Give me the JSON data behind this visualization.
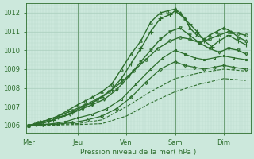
{
  "bg_color": "#cce8dc",
  "plot_bg_color": "#cce8dc",
  "grid_color_major": "#aacfbe",
  "grid_color_minor": "#b8d9ca",
  "line_color": "#2d6e2d",
  "ylabel": "Pression niveau de la mer( hPa )",
  "xtick_labels": [
    "Mer",
    "Jeu",
    "Ven",
    "Sam",
    "Dim"
  ],
  "ylim": [
    1005.6,
    1012.5
  ],
  "yticks": [
    1006,
    1007,
    1008,
    1009,
    1010,
    1011,
    1012
  ],
  "xlim": [
    -0.05,
    4.55
  ],
  "x_day_positions": [
    0,
    1,
    2,
    3,
    4
  ],
  "vlines_x": [
    1.0,
    2.0,
    3.0,
    4.0
  ],
  "figsize": [
    3.2,
    2.0
  ],
  "dpi": 100,
  "lines": [
    {
      "x": [
        0.0,
        0.12,
        0.25,
        0.4,
        0.6,
        0.8,
        1.0,
        1.15,
        1.3,
        1.5,
        1.7,
        1.9,
        2.1,
        2.3,
        2.5,
        2.7,
        2.85,
        3.0,
        3.1,
        3.2,
        3.3,
        3.45,
        3.6,
        3.7,
        3.85,
        4.0,
        4.15,
        4.3,
        4.45
      ],
      "y": [
        1006.0,
        1006.1,
        1006.2,
        1006.3,
        1006.5,
        1006.8,
        1007.1,
        1007.3,
        1007.5,
        1007.8,
        1008.2,
        1009.0,
        1009.8,
        1010.5,
        1011.5,
        1012.0,
        1012.1,
        1012.2,
        1012.0,
        1011.7,
        1011.2,
        1010.8,
        1010.6,
        1010.8,
        1011.0,
        1011.2,
        1011.0,
        1010.7,
        1010.5
      ],
      "style": "-",
      "marker": "^",
      "ms": 2.5,
      "lw": 1.0,
      "alpha": 1.0
    },
    {
      "x": [
        0.0,
        0.15,
        0.3,
        0.5,
        0.7,
        0.9,
        1.1,
        1.3,
        1.5,
        1.7,
        1.9,
        2.1,
        2.3,
        2.5,
        2.7,
        2.9,
        3.0,
        3.15,
        3.3,
        3.45,
        3.6,
        3.75,
        3.9,
        4.1,
        4.3,
        4.45
      ],
      "y": [
        1006.0,
        1006.1,
        1006.15,
        1006.3,
        1006.5,
        1006.7,
        1007.0,
        1007.2,
        1007.5,
        1007.9,
        1008.5,
        1009.3,
        1010.1,
        1011.0,
        1011.7,
        1011.9,
        1012.1,
        1011.8,
        1011.4,
        1011.0,
        1010.5,
        1010.2,
        1010.5,
        1010.8,
        1010.5,
        1010.3
      ],
      "style": "-",
      "marker": "+",
      "ms": 4,
      "lw": 1.0,
      "alpha": 1.0
    },
    {
      "x": [
        0.0,
        0.2,
        0.4,
        0.6,
        0.85,
        1.1,
        1.3,
        1.55,
        1.8,
        2.05,
        2.3,
        2.5,
        2.7,
        2.9,
        3.1,
        3.3,
        3.5,
        3.7,
        3.9,
        4.1,
        4.3,
        4.45
      ],
      "y": [
        1006.0,
        1006.1,
        1006.2,
        1006.4,
        1006.6,
        1006.9,
        1007.1,
        1007.4,
        1007.9,
        1008.6,
        1009.4,
        1010.0,
        1010.6,
        1011.0,
        1011.2,
        1010.8,
        1010.4,
        1010.1,
        1009.9,
        1010.1,
        1010.0,
        1009.8
      ],
      "style": "-",
      "marker": "v",
      "ms": 2.5,
      "lw": 1.0,
      "alpha": 1.0
    },
    {
      "x": [
        0.0,
        0.25,
        0.5,
        0.75,
        1.0,
        1.3,
        1.6,
        1.9,
        2.2,
        2.5,
        2.75,
        3.0,
        3.2,
        3.4,
        3.6,
        3.8,
        4.0,
        4.2,
        4.45
      ],
      "y": [
        1006.0,
        1006.05,
        1006.1,
        1006.2,
        1006.4,
        1006.6,
        1006.9,
        1007.4,
        1008.2,
        1009.0,
        1009.6,
        1010.0,
        1009.8,
        1009.6,
        1009.5,
        1009.6,
        1009.7,
        1009.6,
        1009.5
      ],
      "style": "-",
      "marker": "s",
      "ms": 2,
      "lw": 0.9,
      "alpha": 1.0
    },
    {
      "x": [
        0.0,
        0.3,
        0.6,
        0.9,
        1.2,
        1.5,
        1.8,
        2.1,
        2.4,
        2.7,
        3.0,
        3.2,
        3.4,
        3.6,
        3.8,
        4.0,
        4.2,
        4.45
      ],
      "y": [
        1006.0,
        1006.05,
        1006.08,
        1006.15,
        1006.3,
        1006.5,
        1006.9,
        1007.5,
        1008.3,
        1009.0,
        1009.4,
        1009.2,
        1009.1,
        1009.0,
        1009.1,
        1009.2,
        1009.1,
        1009.0
      ],
      "style": "-",
      "marker": "D",
      "ms": 2,
      "lw": 0.9,
      "alpha": 1.0
    },
    {
      "x": [
        0.0,
        0.5,
        1.0,
        1.5,
        2.0,
        2.5,
        3.0,
        3.5,
        4.0,
        4.45
      ],
      "y": [
        1006.0,
        1006.05,
        1006.1,
        1006.3,
        1007.0,
        1007.8,
        1008.5,
        1008.8,
        1009.0,
        1008.9
      ],
      "style": "--",
      "marker": null,
      "ms": 0,
      "lw": 0.8,
      "alpha": 1.0
    },
    {
      "x": [
        0.0,
        0.5,
        1.0,
        1.5,
        2.0,
        2.5,
        3.0,
        3.5,
        4.0,
        4.45
      ],
      "y": [
        1006.0,
        1006.03,
        1006.05,
        1006.1,
        1006.5,
        1007.2,
        1007.8,
        1008.2,
        1008.5,
        1008.4
      ],
      "style": "--",
      "marker": null,
      "ms": 0,
      "lw": 0.8,
      "alpha": 1.0
    },
    {
      "x": [
        0.0,
        0.2,
        0.4,
        0.65,
        0.9,
        1.15,
        1.4,
        1.65,
        1.9,
        2.15,
        2.4,
        2.65,
        2.9,
        3.1,
        3.3,
        3.5,
        3.7,
        3.9,
        4.1,
        4.3,
        4.45
      ],
      "y": [
        1006.0,
        1006.15,
        1006.3,
        1006.55,
        1006.8,
        1007.1,
        1007.4,
        1007.8,
        1008.3,
        1008.9,
        1009.5,
        1010.1,
        1010.5,
        1010.7,
        1010.6,
        1010.4,
        1010.6,
        1010.8,
        1011.0,
        1010.9,
        1010.8
      ],
      "style": "-",
      "marker": "o",
      "ms": 2.5,
      "lw": 1.0,
      "alpha": 1.0
    }
  ]
}
